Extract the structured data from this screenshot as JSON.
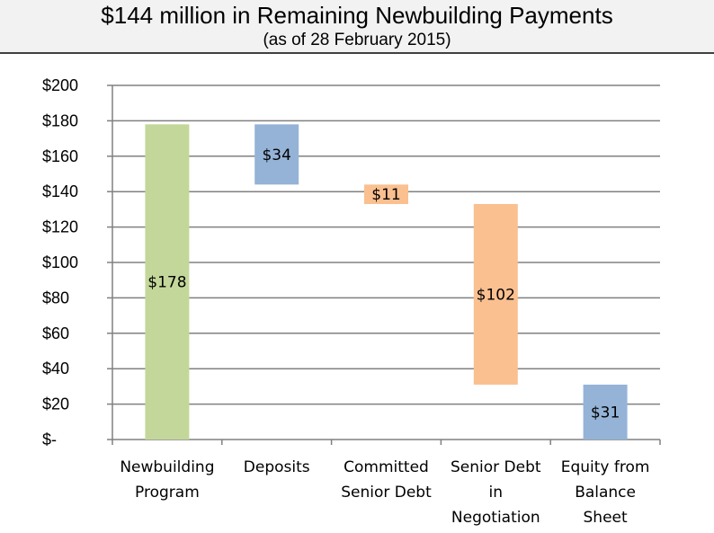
{
  "header": {
    "title": "$144 million in Remaining Newbuilding Payments",
    "subtitle": "(as of 28 February 2015)"
  },
  "colors": {
    "green": "#c4d79b",
    "blue": "#95b3d7",
    "orange": "#fac090",
    "grid": "#808080",
    "header_bg": "#f2f2f2"
  },
  "chart_data": {
    "type": "bar",
    "subtype": "waterfall",
    "title": "$144 million in Remaining Newbuilding Payments",
    "subtitle": "(as of 28 February 2015)",
    "categories": [
      [
        "Newbuilding",
        "Program"
      ],
      [
        "Deposits"
      ],
      [
        "Committed",
        "Senior Debt"
      ],
      [
        "Senior Debt",
        "in",
        "Negotiation"
      ],
      [
        "Equity from",
        "Balance",
        "Sheet"
      ]
    ],
    "bars": [
      {
        "base": 0,
        "top": 178,
        "value": 178,
        "label": "$178",
        "color": "green"
      },
      {
        "base": 144,
        "top": 178,
        "value": 34,
        "label": "$34",
        "color": "blue"
      },
      {
        "base": 133,
        "top": 144,
        "value": 11,
        "label": "$11",
        "color": "orange"
      },
      {
        "base": 31,
        "top": 133,
        "value": 102,
        "label": "$102",
        "color": "orange"
      },
      {
        "base": 0,
        "top": 31,
        "value": 31,
        "label": "$31",
        "color": "blue"
      }
    ],
    "ylim": [
      0,
      200
    ],
    "yticks": [
      0,
      20,
      40,
      60,
      80,
      100,
      120,
      140,
      160,
      180,
      200
    ],
    "ytick_labels": [
      "$-",
      "$20",
      "$40",
      "$60",
      "$80",
      "$100",
      "$120",
      "$140",
      "$160",
      "$180",
      "$200"
    ],
    "grid": true,
    "legend": "none",
    "xlabel": "",
    "ylabel": ""
  }
}
